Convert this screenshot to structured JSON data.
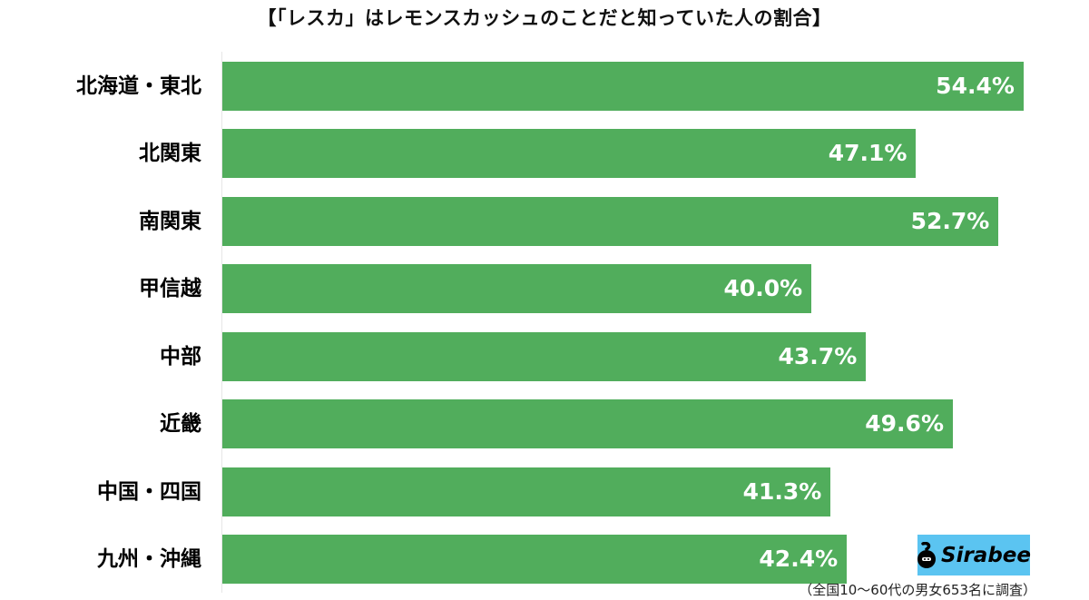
{
  "title": "【「レスカ」はレモンスカッシュのことだと知っていた人の割合】",
  "footnote": "（全国10〜60代の男女653名に調査）",
  "logo": {
    "text": "Sirabee",
    "bg_color": "#5bc4f1"
  },
  "colors": {
    "bar": "#51ad5c",
    "value_text": "#ffffff",
    "label_text": "#000000"
  },
  "rows": [
    {
      "label": "北海道・東北",
      "value": 54.4,
      "display": "54.4%"
    },
    {
      "label": "北関東",
      "value": 47.1,
      "display": "47.1%"
    },
    {
      "label": "南関東",
      "value": 52.7,
      "display": "52.7%"
    },
    {
      "label": "甲信越",
      "value": 40.0,
      "display": "40.0%"
    },
    {
      "label": "中部",
      "value": 43.7,
      "display": "43.7%"
    },
    {
      "label": "近畿",
      "value": 49.6,
      "display": "49.6%"
    },
    {
      "label": "中国・四国",
      "value": 41.3,
      "display": "41.3%"
    },
    {
      "label": "九州・沖縄",
      "value": 42.4,
      "display": "42.4%"
    }
  ],
  "chart_data": {
    "type": "bar",
    "orientation": "horizontal",
    "title": "【「レスカ」はレモンスカッシュのことだと知っていた人の割合】",
    "categories": [
      "北海道・東北",
      "北関東",
      "南関東",
      "甲信越",
      "中部",
      "近畿",
      "中国・四国",
      "九州・沖縄"
    ],
    "values": [
      54.4,
      47.1,
      52.7,
      40.0,
      43.7,
      49.6,
      41.3,
      42.4
    ],
    "unit": "%",
    "xlabel": "",
    "ylabel": "",
    "data_labels": true,
    "grid": false,
    "legend": null,
    "note": "（全国10〜60代の男女653名に調査）"
  }
}
